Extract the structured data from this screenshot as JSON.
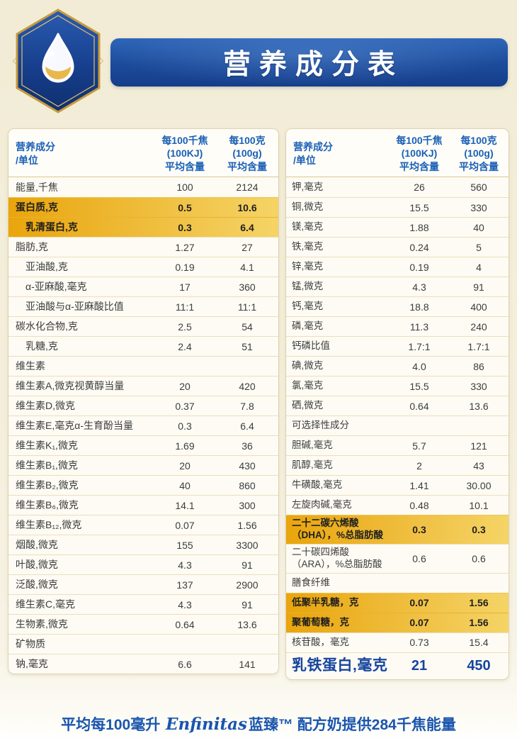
{
  "header": {
    "title": "营养成分表"
  },
  "columns": {
    "name": "营养成分\n/单位",
    "per_kj": "每100千焦\n(100KJ)\n平均含量",
    "per_g": "每100克\n(100g)\n平均含量"
  },
  "left_table": {
    "rows": [
      {
        "label": "能量,千焦",
        "kj": "100",
        "g": "2124",
        "style": ""
      },
      {
        "label": "蛋白质,克",
        "kj": "0.5",
        "g": "10.6",
        "style": "highlight"
      },
      {
        "label": "乳清蛋白,克",
        "kj": "0.3",
        "g": "6.4",
        "style": "highlight indent"
      },
      {
        "label": "脂肪,克",
        "kj": "1.27",
        "g": "27",
        "style": ""
      },
      {
        "label": "亚油酸,克",
        "kj": "0.19",
        "g": "4.1",
        "style": "indent"
      },
      {
        "label": "α-亚麻酸,毫克",
        "kj": "17",
        "g": "360",
        "style": "indent"
      },
      {
        "label": "亚油酸与α-亚麻酸比值",
        "kj": "11:1",
        "g": "11:1",
        "style": "indent"
      },
      {
        "label": "碳水化合物,克",
        "kj": "2.5",
        "g": "54",
        "style": ""
      },
      {
        "label": "乳糖,克",
        "kj": "2.4",
        "g": "51",
        "style": "indent"
      },
      {
        "label": "维生素",
        "kj": "",
        "g": "",
        "style": "section"
      },
      {
        "label": "维生素A,微克视黄醇当量",
        "kj": "20",
        "g": "420",
        "style": ""
      },
      {
        "label": "维生素D,微克",
        "kj": "0.37",
        "g": "7.8",
        "style": ""
      },
      {
        "label": "维生素E,毫克α-生育酚当量",
        "kj": "0.3",
        "g": "6.4",
        "style": ""
      },
      {
        "label": "维生素K₁,微克",
        "kj": "1.69",
        "g": "36",
        "style": ""
      },
      {
        "label": "维生素B₁,微克",
        "kj": "20",
        "g": "430",
        "style": ""
      },
      {
        "label": "维生素B₂,微克",
        "kj": "40",
        "g": "860",
        "style": ""
      },
      {
        "label": "维生素B₆,微克",
        "kj": "14.1",
        "g": "300",
        "style": ""
      },
      {
        "label": "维生素B₁₂,微克",
        "kj": "0.07",
        "g": "1.56",
        "style": ""
      },
      {
        "label": "烟酸,微克",
        "kj": "155",
        "g": "3300",
        "style": ""
      },
      {
        "label": "叶酸,微克",
        "kj": "4.3",
        "g": "91",
        "style": ""
      },
      {
        "label": "泛酸,微克",
        "kj": "137",
        "g": "2900",
        "style": ""
      },
      {
        "label": "维生素C,毫克",
        "kj": "4.3",
        "g": "91",
        "style": ""
      },
      {
        "label": "生物素,微克",
        "kj": "0.64",
        "g": "13.6",
        "style": ""
      },
      {
        "label": "矿物质",
        "kj": "",
        "g": "",
        "style": "section"
      },
      {
        "label": "钠,毫克",
        "kj": "6.6",
        "g": "141",
        "style": ""
      }
    ]
  },
  "right_table": {
    "rows": [
      {
        "label": "钾,毫克",
        "kj": "26",
        "g": "560",
        "style": ""
      },
      {
        "label": "铜,微克",
        "kj": "15.5",
        "g": "330",
        "style": ""
      },
      {
        "label": "镁,毫克",
        "kj": "1.88",
        "g": "40",
        "style": ""
      },
      {
        "label": "铁,毫克",
        "kj": "0.24",
        "g": "5",
        "style": ""
      },
      {
        "label": "锌,毫克",
        "kj": "0.19",
        "g": "4",
        "style": ""
      },
      {
        "label": "锰,微克",
        "kj": "4.3",
        "g": "91",
        "style": ""
      },
      {
        "label": "钙,毫克",
        "kj": "18.8",
        "g": "400",
        "style": ""
      },
      {
        "label": "磷,毫克",
        "kj": "11.3",
        "g": "240",
        "style": ""
      },
      {
        "label": "钙磷比值",
        "kj": "1.7:1",
        "g": "1.7:1",
        "style": ""
      },
      {
        "label": "碘,微克",
        "kj": "4.0",
        "g": "86",
        "style": ""
      },
      {
        "label": "氯,毫克",
        "kj": "15.5",
        "g": "330",
        "style": ""
      },
      {
        "label": "硒,微克",
        "kj": "0.64",
        "g": "13.6",
        "style": ""
      },
      {
        "label": "可选择性成分",
        "kj": "",
        "g": "",
        "style": "section"
      },
      {
        "label": "胆碱,毫克",
        "kj": "5.7",
        "g": "121",
        "style": ""
      },
      {
        "label": "肌醇,毫克",
        "kj": "2",
        "g": "43",
        "style": ""
      },
      {
        "label": "牛磺酸,毫克",
        "kj": "1.41",
        "g": "30.00",
        "style": ""
      },
      {
        "label": "左旋肉碱,毫克",
        "kj": "0.48",
        "g": "10.1",
        "style": ""
      },
      {
        "label": "二十二碳六烯酸\n（DHA），%总脂肪酸",
        "kj": "0.3",
        "g": "0.3",
        "style": "highlight"
      },
      {
        "label": "二十碳四烯酸\n（ARA），%总脂肪酸",
        "kj": "0.6",
        "g": "0.6",
        "style": ""
      },
      {
        "label": "膳食纤维",
        "kj": "",
        "g": "",
        "style": "section"
      },
      {
        "label": "低聚半乳糖，克",
        "kj": "0.07",
        "g": "1.56",
        "style": "highlight"
      },
      {
        "label": "聚葡萄糖，克",
        "kj": "0.07",
        "g": "1.56",
        "style": "highlight"
      },
      {
        "label": "核苷酸，毫克",
        "kj": "0.73",
        "g": "15.4",
        "style": ""
      },
      {
        "label": "乳铁蛋白,毫克",
        "kj": "21",
        "g": "450",
        "style": "big"
      }
    ]
  },
  "footer": {
    "prefix": "平均每100毫升 ",
    "brand": "Enfinitas",
    "suffix": "蓝臻™ 配方奶提供284千焦能量"
  },
  "colors": {
    "banner_blue": "#1c4a9a",
    "header_text_blue": "#1a60b6",
    "highlight_gold_start": "#e9a50c",
    "highlight_gold_end": "#f5d466",
    "footer_blue": "#1a55ae",
    "page_background": "#f2ecd6"
  }
}
